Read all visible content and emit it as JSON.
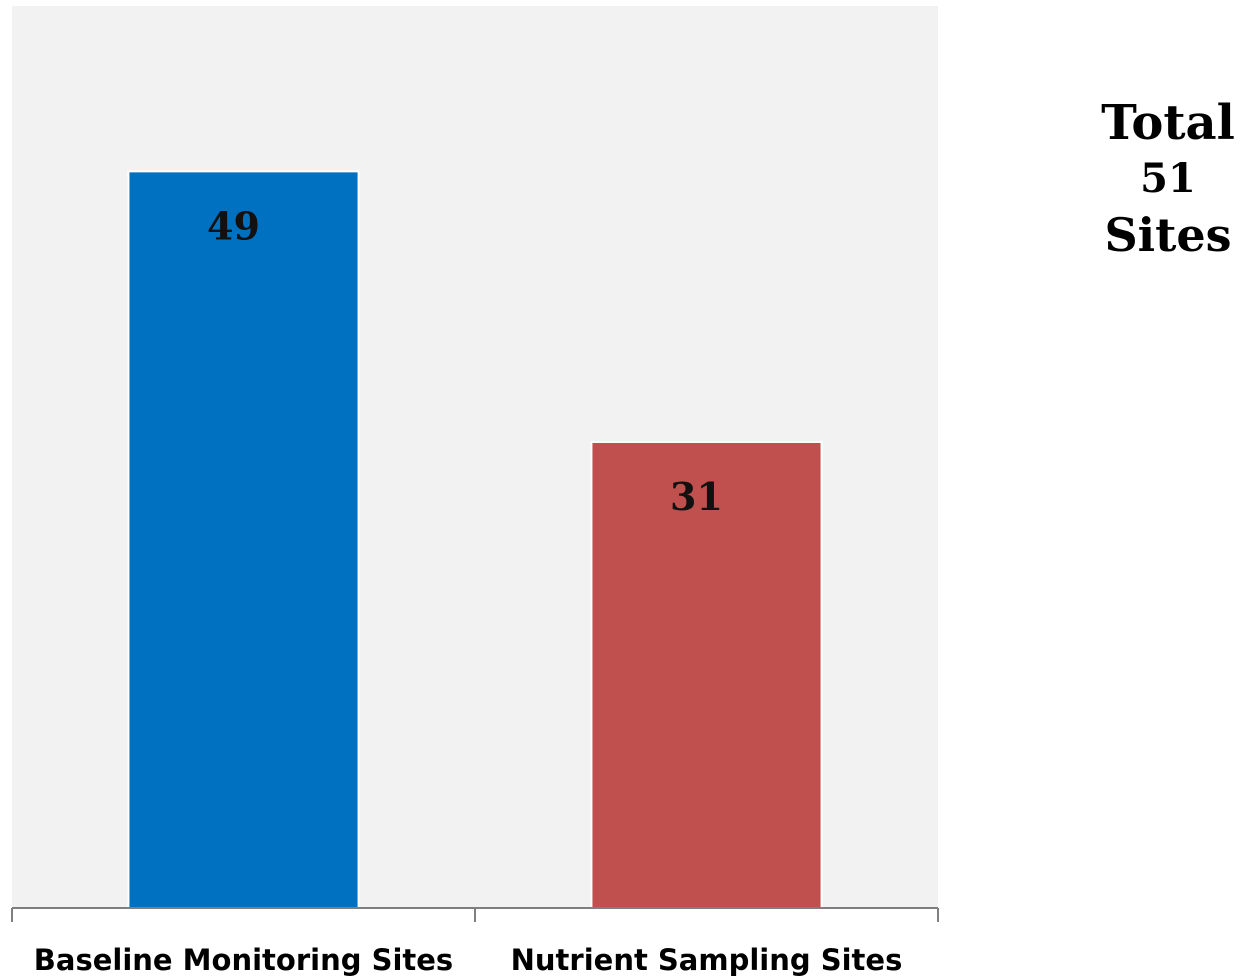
{
  "chart_data": {
    "type": "bar",
    "categories": [
      "Baseline Monitoring Sites",
      "Nutrient Sampling Sites"
    ],
    "values": [
      49,
      31
    ],
    "colors": [
      "#0070c0",
      "#c0504d"
    ],
    "data_labels": [
      "49",
      "31"
    ],
    "title": "",
    "xlabel": "",
    "ylabel": "",
    "ylim": [
      0,
      60
    ],
    "grid": false,
    "legend": "none",
    "plot_background": "#f2f2f2"
  },
  "annotation": {
    "line1": "Total",
    "line2": "51",
    "line3": "Sites"
  }
}
